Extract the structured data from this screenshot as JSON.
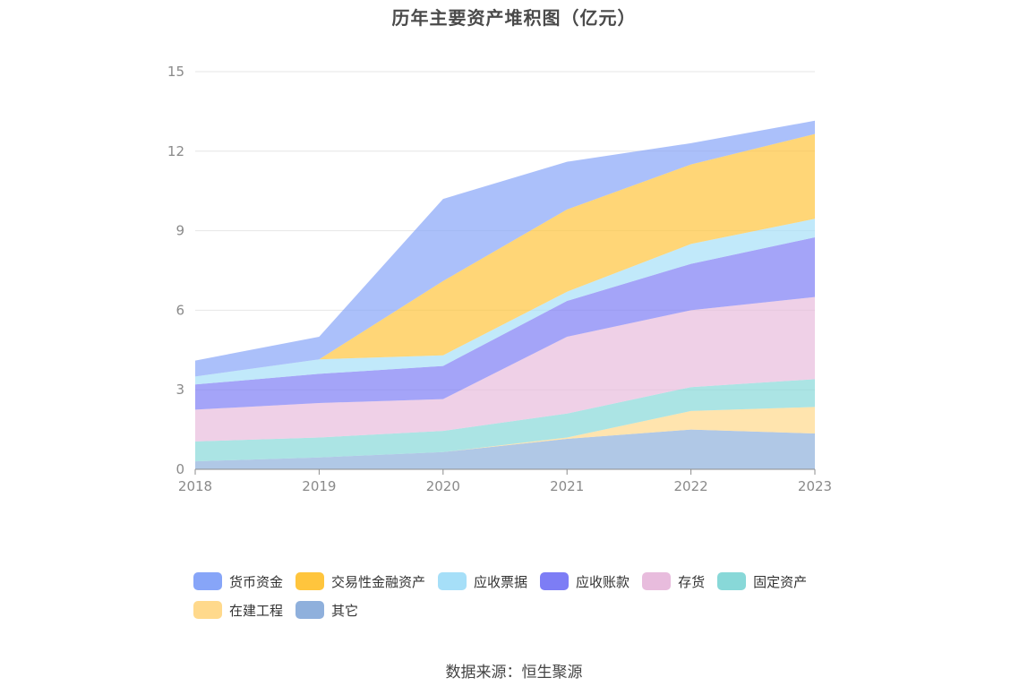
{
  "chart_data": {
    "type": "area",
    "stacked": true,
    "title": "历年主要资产堆积图（亿元）",
    "x": [
      "2018",
      "2019",
      "2020",
      "2021",
      "2022",
      "2023"
    ],
    "ylim": [
      0,
      15
    ],
    "yticks": [
      0,
      3,
      6,
      9,
      12,
      15
    ],
    "grid": true,
    "legend_position": "bottom",
    "series": [
      {
        "name": "其它",
        "color": "#8fb0dc",
        "values": [
          0.3,
          0.45,
          0.65,
          1.15,
          1.5,
          1.35
        ]
      },
      {
        "name": "在建工程",
        "color": "#ffd98c",
        "values": [
          0.0,
          0.0,
          0.0,
          0.05,
          0.7,
          1.0
        ]
      },
      {
        "name": "固定资产",
        "color": "#88d8d8",
        "values": [
          0.75,
          0.75,
          0.8,
          0.9,
          0.9,
          1.05
        ]
      },
      {
        "name": "存货",
        "color": "#e8bcdd",
        "values": [
          1.2,
          1.3,
          1.2,
          2.9,
          2.9,
          3.1
        ]
      },
      {
        "name": "应收账款",
        "color": "#7d7df5",
        "values": [
          0.95,
          1.1,
          1.25,
          1.35,
          1.75,
          2.25
        ]
      },
      {
        "name": "应收票据",
        "color": "#a6dff8",
        "values": [
          0.3,
          0.55,
          0.4,
          0.35,
          0.75,
          0.7
        ]
      },
      {
        "name": "交易性金融资产",
        "color": "#ffc53d",
        "values": [
          0.0,
          0.0,
          2.8,
          3.1,
          3.0,
          3.2
        ]
      },
      {
        "name": "货币资金",
        "color": "#87a5f8",
        "values": [
          0.6,
          0.85,
          3.1,
          1.8,
          0.8,
          0.5
        ]
      }
    ]
  },
  "legend_order": [
    "货币资金",
    "交易性金融资产",
    "应收票据",
    "应收账款",
    "存货",
    "固定资产",
    "在建工程",
    "其它"
  ],
  "source": "数据来源：恒生聚源"
}
